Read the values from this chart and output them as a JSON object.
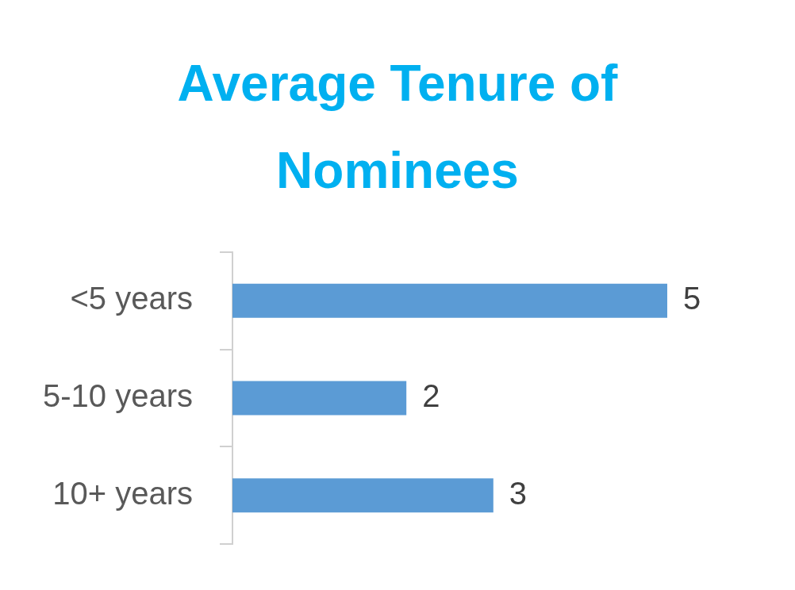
{
  "chart_data": {
    "type": "bar",
    "orientation": "horizontal",
    "title": "Average Tenure of Nominees",
    "categories": [
      "<5 years",
      "5-10 years",
      "10+ years"
    ],
    "values": [
      5,
      2,
      3
    ],
    "color": "#5b9bd5",
    "data_labels": true,
    "grid": false,
    "legend": false
  }
}
